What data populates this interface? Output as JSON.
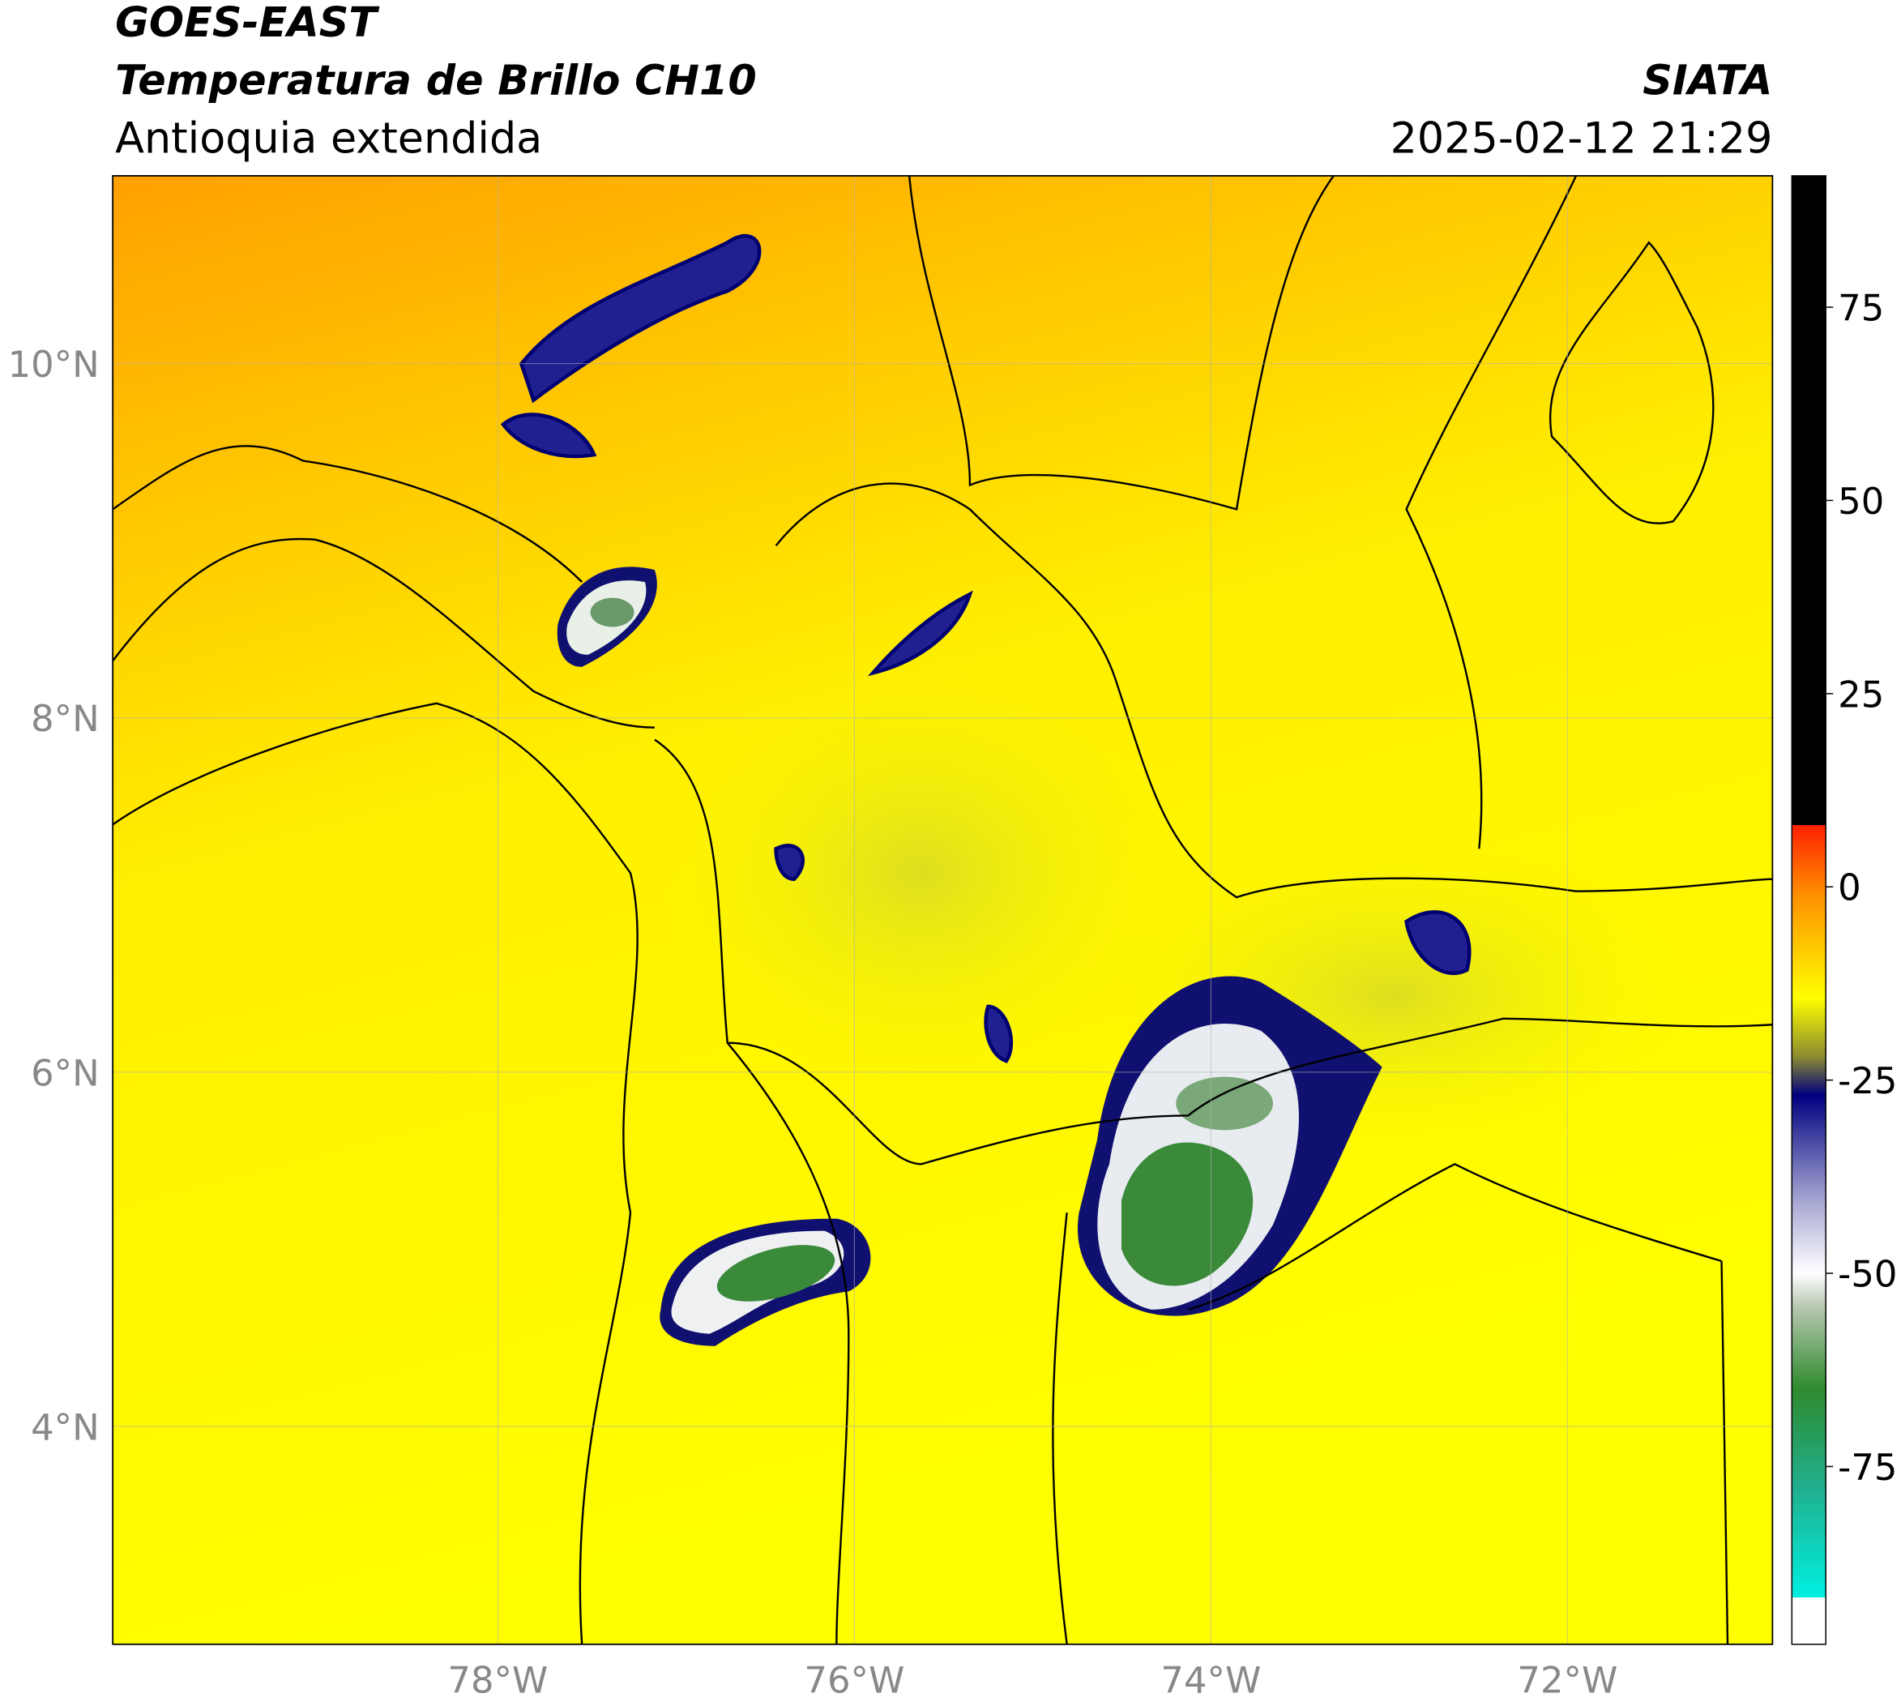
{
  "header": {
    "title": "GOES-EAST",
    "subtitle": "Temperatura de Brillo CH10",
    "region": "Antioquia extendida",
    "source": "SIATA",
    "timestamp": "2025-02-12 21:29"
  },
  "map": {
    "xlim": [
      -80.16,
      -70.85
    ],
    "ylim": [
      2.77,
      11.06
    ],
    "xticks": [
      {
        "value": -78,
        "label": "78°W"
      },
      {
        "value": -76,
        "label": "76°W"
      },
      {
        "value": -74,
        "label": "74°W"
      },
      {
        "value": -72,
        "label": "72°W"
      }
    ],
    "yticks": [
      {
        "value": 10,
        "label": "10°N"
      },
      {
        "value": 8,
        "label": "8°N"
      },
      {
        "value": 6,
        "label": "6°N"
      },
      {
        "value": 4,
        "label": "4°N"
      }
    ],
    "grid": true
  },
  "colorbar": {
    "lim": [
      -98,
      92
    ],
    "ticks": [
      75,
      50,
      25,
      0,
      -25,
      -50,
      -75
    ]
  }
}
